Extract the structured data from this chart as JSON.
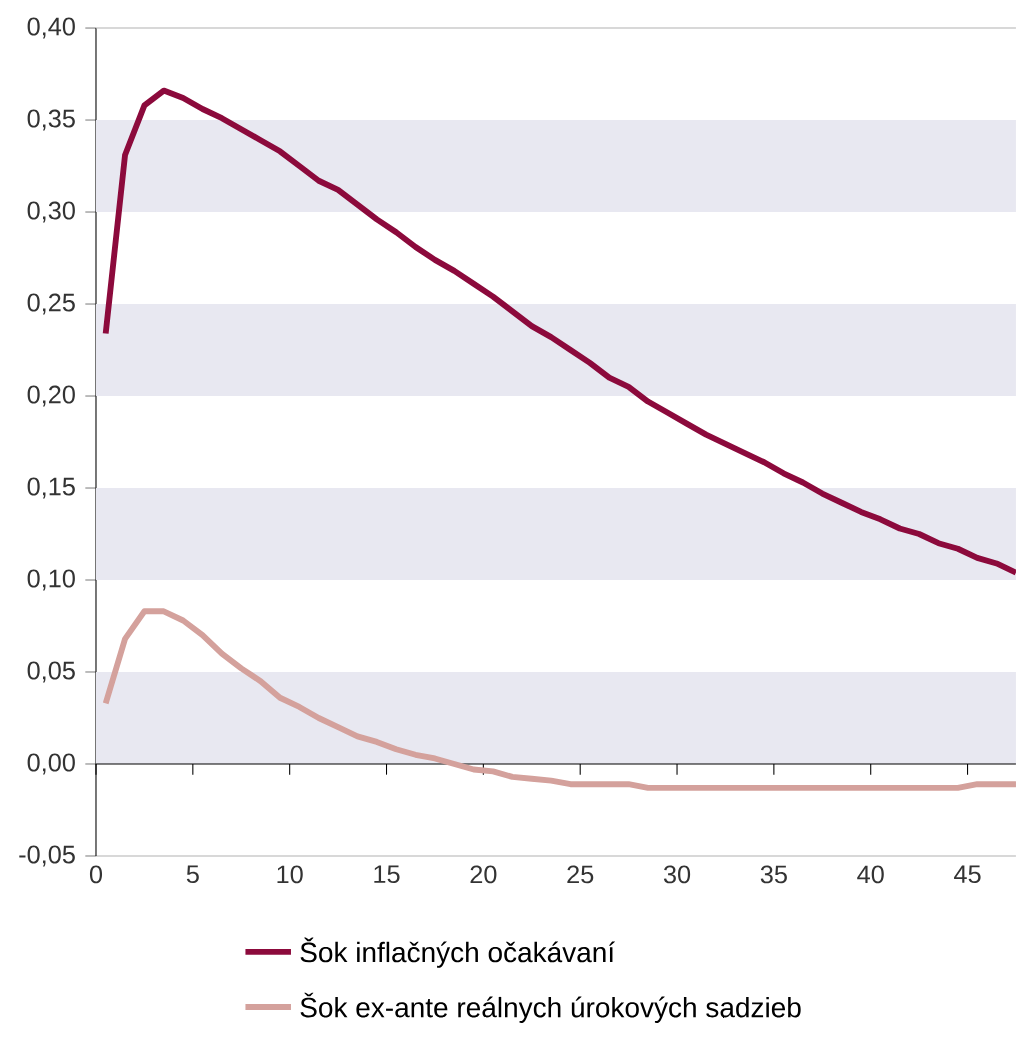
{
  "chart_data": {
    "type": "line",
    "x": [
      0.5,
      1.5,
      2.5,
      3.5,
      4.5,
      5.5,
      6.5,
      7.5,
      8.5,
      9.5,
      10.5,
      11.5,
      12.5,
      13.5,
      14.5,
      15.5,
      16.5,
      17.5,
      18.5,
      19.5,
      20.5,
      21.5,
      22.5,
      23.5,
      24.5,
      25.5,
      26.5,
      27.5,
      28.5,
      29.5,
      30.5,
      31.5,
      32.5,
      33.5,
      34.5,
      35.5,
      36.5,
      37.5,
      38.5,
      39.5,
      40.5,
      41.5,
      42.5,
      43.5,
      44.5,
      45.5,
      46.5,
      47.5
    ],
    "series": [
      {
        "name": "Šok inflačných očakávaní",
        "color": "#8c0a3c",
        "values": [
          0.234,
          0.331,
          0.358,
          0.366,
          0.362,
          0.356,
          0.351,
          0.345,
          0.339,
          0.333,
          0.325,
          0.317,
          0.312,
          0.304,
          0.296,
          0.289,
          0.281,
          0.274,
          0.268,
          0.261,
          0.254,
          0.246,
          0.238,
          0.232,
          0.225,
          0.218,
          0.21,
          0.205,
          0.197,
          0.191,
          0.185,
          0.179,
          0.174,
          0.169,
          0.164,
          0.158,
          0.153,
          0.147,
          0.142,
          0.137,
          0.133,
          0.128,
          0.125,
          0.12,
          0.117,
          0.112,
          0.109,
          0.104
        ]
      },
      {
        "name": "Šok ex-ante reálnych úrokových sadzieb",
        "color": "#d4a19c",
        "values": [
          0.033,
          0.068,
          0.083,
          0.083,
          0.078,
          0.07,
          0.06,
          0.052,
          0.045,
          0.036,
          0.031,
          0.025,
          0.02,
          0.015,
          0.012,
          0.008,
          0.005,
          0.003,
          0.0,
          -0.003,
          -0.004,
          -0.007,
          -0.008,
          -0.009,
          -0.011,
          -0.011,
          -0.011,
          -0.011,
          -0.013,
          -0.013,
          -0.013,
          -0.013,
          -0.013,
          -0.013,
          -0.013,
          -0.013,
          -0.013,
          -0.013,
          -0.013,
          -0.013,
          -0.013,
          -0.013,
          -0.013,
          -0.013,
          -0.013,
          -0.011,
          -0.011,
          -0.011
        ]
      }
    ],
    "xlim": [
      0,
      47.5
    ],
    "xticks": [
      0,
      5,
      10,
      15,
      20,
      25,
      30,
      35,
      40,
      45
    ],
    "ylim": [
      -0.05,
      0.4
    ],
    "yticks": [
      {
        "value": -0.05,
        "label": "-0,05"
      },
      {
        "value": 0,
        "label": "0,00"
      },
      {
        "value": 0.05,
        "label": "0,05"
      },
      {
        "value": 0.1,
        "label": "0,10"
      },
      {
        "value": 0.15,
        "label": "0,15"
      },
      {
        "value": 0.2,
        "label": "0,20"
      },
      {
        "value": 0.25,
        "label": "0,25"
      },
      {
        "value": 0.3,
        "label": "0,30"
      },
      {
        "value": 0.35,
        "label": "0,35"
      },
      {
        "value": 0.4,
        "label": "0,40"
      }
    ],
    "bands": [
      {
        "axis": "y",
        "from": 0,
        "to": 0.05,
        "color": "#e8e8f1"
      },
      {
        "axis": "y",
        "from": 0.1,
        "to": 0.15,
        "color": "#e8e8f1"
      },
      {
        "axis": "y",
        "from": 0.2,
        "to": 0.25,
        "color": "#e8e8f1"
      },
      {
        "axis": "y",
        "from": 0.3,
        "to": 0.35,
        "color": "#e8e8f1"
      }
    ],
    "legend": "bottom"
  }
}
